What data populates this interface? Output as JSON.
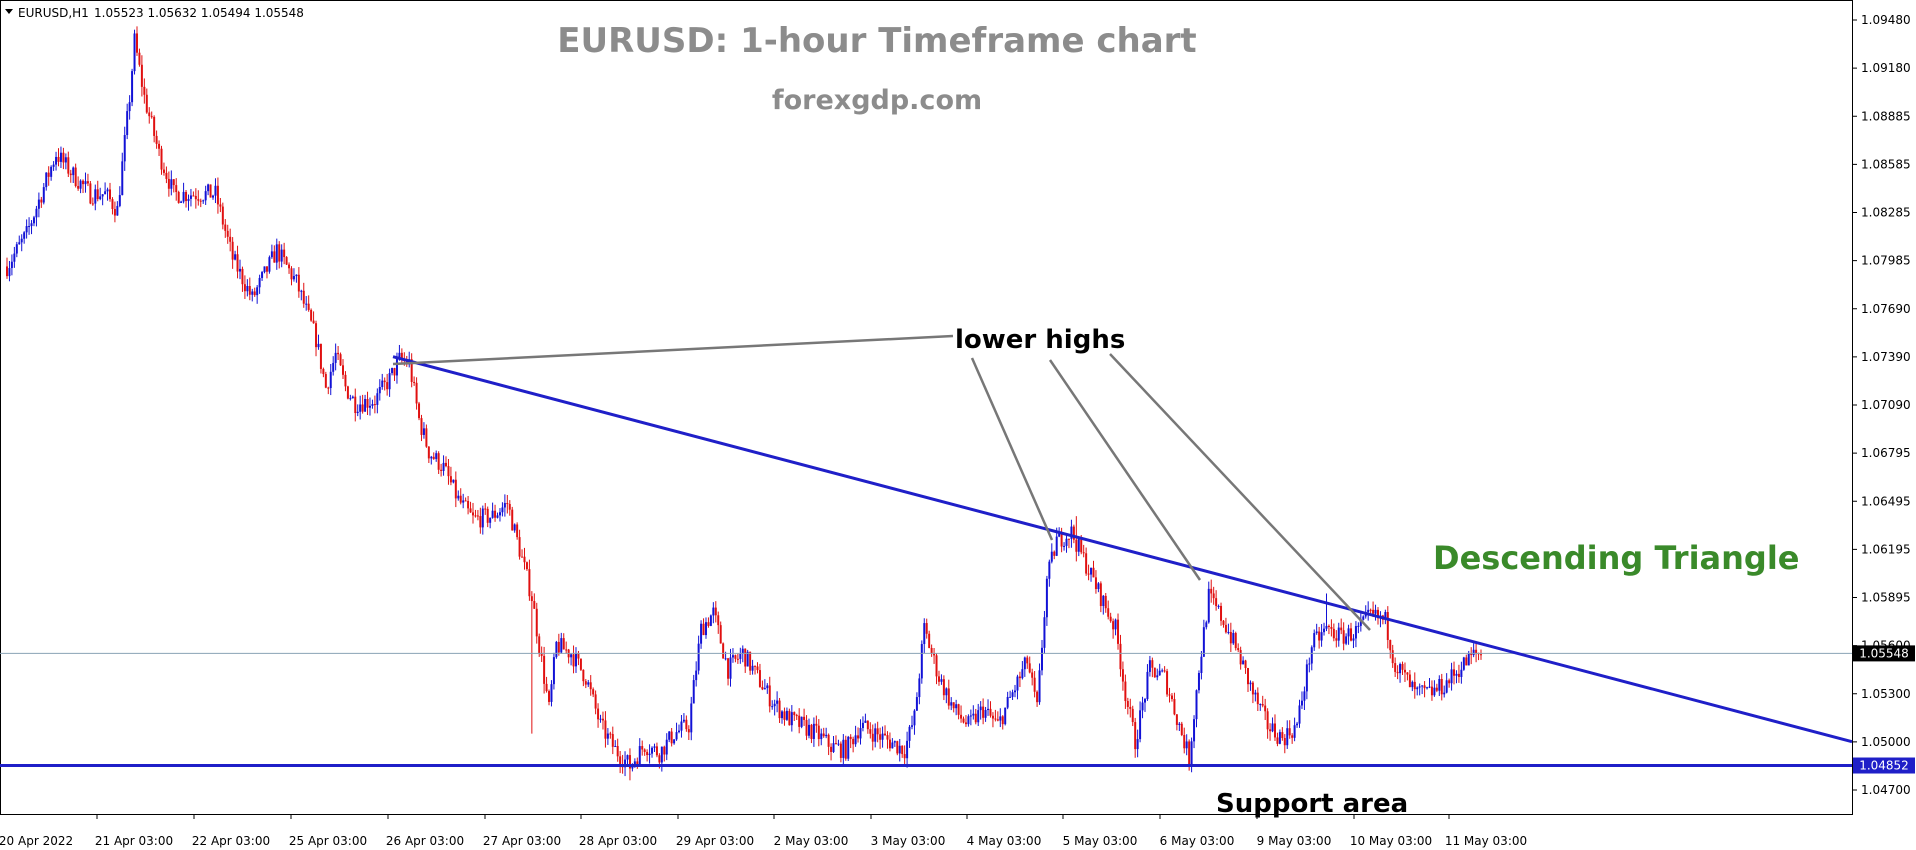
{
  "header": {
    "symbol": "EURUSD,H1",
    "ohlc": "1.05523 1.05632 1.05494 1.05548"
  },
  "title": "EURUSD: 1-hour Timeframe chart",
  "subtitle": "forexgdp.com",
  "annotations": {
    "lower_highs": "lower highs",
    "pattern": "Descending Triangle",
    "support": "Support area"
  },
  "colors": {
    "bull": "#1212d6",
    "bear": "#e01010",
    "trendline": "#1f1fc8",
    "pointer": "#777777",
    "pattern_text": "#3a8a2a",
    "price_marker_bg": "#000000",
    "support_marker_bg": "#1f1fc8"
  },
  "price_markers": {
    "current": "1.05548",
    "support": "1.04852"
  },
  "chart_data": {
    "type": "candlestick",
    "title": "EURUSD: 1-hour Timeframe chart",
    "y_ticks": [
      "1.09480",
      "1.09180",
      "1.08885",
      "1.08585",
      "1.08285",
      "1.07985",
      "1.07690",
      "1.07390",
      "1.07090",
      "1.06795",
      "1.06495",
      "1.06195",
      "1.05895",
      "1.05600",
      "1.05300",
      "1.05000",
      "1.04700"
    ],
    "x_ticks": [
      "20 Apr 2022",
      "21 Apr 03:00",
      "22 Apr 03:00",
      "25 Apr 03:00",
      "26 Apr 03:00",
      "27 Apr 03:00",
      "28 Apr 03:00",
      "29 Apr 03:00",
      "2 May 03:00",
      "3 May 03:00",
      "4 May 03:00",
      "5 May 03:00",
      "6 May 03:00",
      "9 May 03:00",
      "10 May 03:00",
      "11 May 03:00"
    ],
    "ylim": [
      1.0466,
      1.0958
    ],
    "current_price": 1.05548,
    "support_level": 1.04852,
    "trendline": {
      "start": {
        "date": "26 Apr 2022",
        "price": 1.0739
      },
      "end": {
        "date": "12 May 2022",
        "price": 1.05
      }
    },
    "grid": false,
    "anchors": [
      {
        "bar": 0,
        "price": 1.0795
      },
      {
        "bar": 8,
        "price": 1.0815
      },
      {
        "bar": 20,
        "price": 1.0865
      },
      {
        "bar": 28,
        "price": 1.085
      },
      {
        "bar": 34,
        "price": 1.084
      },
      {
        "bar": 40,
        "price": 1.084
      },
      {
        "bar": 45,
        "price": 1.083
      },
      {
        "bar": 50,
        "price": 1.09
      },
      {
        "bar": 52,
        "price": 1.0935
      },
      {
        "bar": 56,
        "price": 1.09
      },
      {
        "bar": 62,
        "price": 1.0865
      },
      {
        "bar": 68,
        "price": 1.084
      },
      {
        "bar": 85,
        "price": 1.084
      },
      {
        "bar": 92,
        "price": 1.08
      },
      {
        "bar": 100,
        "price": 1.0775
      },
      {
        "bar": 110,
        "price": 1.0805
      },
      {
        "bar": 118,
        "price": 1.0785
      },
      {
        "bar": 126,
        "price": 1.075
      },
      {
        "bar": 130,
        "price": 1.072
      },
      {
        "bar": 134,
        "price": 1.074
      },
      {
        "bar": 138,
        "price": 1.072
      },
      {
        "bar": 142,
        "price": 1.071
      },
      {
        "bar": 150,
        "price": 1.0712
      },
      {
        "bar": 156,
        "price": 1.0725
      },
      {
        "bar": 160,
        "price": 1.0737
      },
      {
        "bar": 164,
        "price": 1.0735
      },
      {
        "bar": 168,
        "price": 1.07
      },
      {
        "bar": 172,
        "price": 1.068
      },
      {
        "bar": 178,
        "price": 1.067
      },
      {
        "bar": 184,
        "price": 1.065
      },
      {
        "bar": 190,
        "price": 1.0638
      },
      {
        "bar": 198,
        "price": 1.064
      },
      {
        "bar": 204,
        "price": 1.0648
      },
      {
        "bar": 208,
        "price": 1.0625
      },
      {
        "bar": 214,
        "price": 1.059
      },
      {
        "bar": 218,
        "price": 1.055
      },
      {
        "bar": 221,
        "price": 1.052
      },
      {
        "bar": 224,
        "price": 1.056
      },
      {
        "bar": 230,
        "price": 1.0555
      },
      {
        "bar": 236,
        "price": 1.054
      },
      {
        "bar": 242,
        "price": 1.051
      },
      {
        "bar": 248,
        "price": 1.0495
      },
      {
        "bar": 254,
        "price": 1.0485
      },
      {
        "bar": 260,
        "price": 1.0498
      },
      {
        "bar": 266,
        "price": 1.0493
      },
      {
        "bar": 272,
        "price": 1.0505
      },
      {
        "bar": 278,
        "price": 1.051
      },
      {
        "bar": 283,
        "price": 1.057
      },
      {
        "bar": 288,
        "price": 1.058
      },
      {
        "bar": 294,
        "price": 1.0545
      },
      {
        "bar": 300,
        "price": 1.0555
      },
      {
        "bar": 306,
        "price": 1.054
      },
      {
        "bar": 312,
        "price": 1.0525
      },
      {
        "bar": 318,
        "price": 1.0515
      },
      {
        "bar": 324,
        "price": 1.051
      },
      {
        "bar": 330,
        "price": 1.0505
      },
      {
        "bar": 336,
        "price": 1.0497
      },
      {
        "bar": 342,
        "price": 1.0495
      },
      {
        "bar": 348,
        "price": 1.051
      },
      {
        "bar": 354,
        "price": 1.0505
      },
      {
        "bar": 360,
        "price": 1.05
      },
      {
        "bar": 366,
        "price": 1.0495
      },
      {
        "bar": 370,
        "price": 1.0515
      },
      {
        "bar": 374,
        "price": 1.057
      },
      {
        "bar": 380,
        "price": 1.054
      },
      {
        "bar": 386,
        "price": 1.052
      },
      {
        "bar": 392,
        "price": 1.051
      },
      {
        "bar": 398,
        "price": 1.052
      },
      {
        "bar": 404,
        "price": 1.051
      },
      {
        "bar": 410,
        "price": 1.053
      },
      {
        "bar": 416,
        "price": 1.055
      },
      {
        "bar": 420,
        "price": 1.052
      },
      {
        "bar": 424,
        "price": 1.06
      },
      {
        "bar": 428,
        "price": 1.0625
      },
      {
        "bar": 434,
        "price": 1.063
      },
      {
        "bar": 440,
        "price": 1.061
      },
      {
        "bar": 446,
        "price": 1.059
      },
      {
        "bar": 452,
        "price": 1.057
      },
      {
        "bar": 456,
        "price": 1.053
      },
      {
        "bar": 460,
        "price": 1.05
      },
      {
        "bar": 466,
        "price": 1.0545
      },
      {
        "bar": 472,
        "price": 1.054
      },
      {
        "bar": 478,
        "price": 1.051
      },
      {
        "bar": 482,
        "price": 1.049
      },
      {
        "bar": 486,
        "price": 1.0545
      },
      {
        "bar": 490,
        "price": 1.059
      },
      {
        "bar": 496,
        "price": 1.0575
      },
      {
        "bar": 502,
        "price": 1.0555
      },
      {
        "bar": 508,
        "price": 1.053
      },
      {
        "bar": 514,
        "price": 1.051
      },
      {
        "bar": 520,
        "price": 1.0502
      },
      {
        "bar": 526,
        "price": 1.051
      },
      {
        "bar": 532,
        "price": 1.056
      },
      {
        "bar": 538,
        "price": 1.057
      },
      {
        "bar": 544,
        "price": 1.0565
      },
      {
        "bar": 550,
        "price": 1.0568
      },
      {
        "bar": 556,
        "price": 1.0578
      },
      {
        "bar": 562,
        "price": 1.0575
      },
      {
        "bar": 566,
        "price": 1.0548
      },
      {
        "bar": 570,
        "price": 1.054
      },
      {
        "bar": 574,
        "price": 1.053
      },
      {
        "bar": 580,
        "price": 1.053
      },
      {
        "bar": 586,
        "price": 1.0535
      },
      {
        "bar": 592,
        "price": 1.0545
      },
      {
        "bar": 598,
        "price": 1.0554
      },
      {
        "bar": 601,
        "price": 1.05548
      }
    ],
    "spikes": [
      {
        "bar": 52,
        "high": 1.0942
      },
      {
        "bar": 214,
        "low": 1.0505
      },
      {
        "bar": 254,
        "low": 1.0476
      },
      {
        "bar": 436,
        "high": 1.064
      },
      {
        "bar": 460,
        "low": 1.049
      },
      {
        "bar": 482,
        "low": 1.0482
      },
      {
        "bar": 538,
        "high": 1.0592
      }
    ]
  }
}
